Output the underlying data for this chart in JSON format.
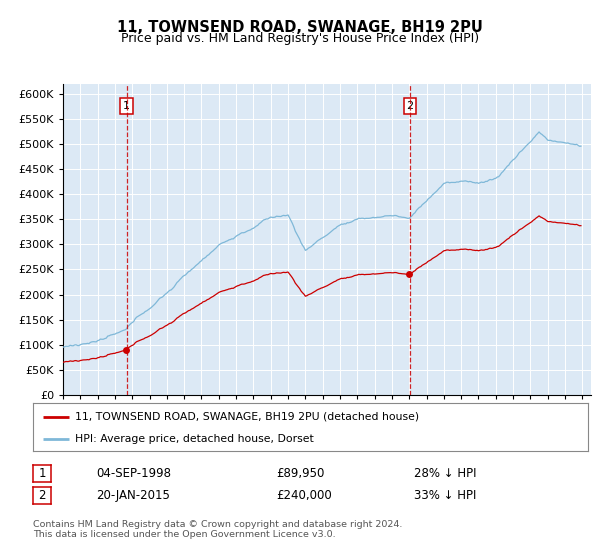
{
  "title": "11, TOWNSEND ROAD, SWANAGE, BH19 2PU",
  "subtitle": "Price paid vs. HM Land Registry's House Price Index (HPI)",
  "plot_bg_color": "#dce9f5",
  "grid_color": "#ffffff",
  "sale1_date_label": "04-SEP-1998",
  "sale1_price": 89950,
  "sale1_hpi_diff": "28% ↓ HPI",
  "sale2_date_label": "20-JAN-2015",
  "sale2_price": 240000,
  "sale2_hpi_diff": "33% ↓ HPI",
  "legend_line1": "11, TOWNSEND ROAD, SWANAGE, BH19 2PU (detached house)",
  "legend_line2": "HPI: Average price, detached house, Dorset",
  "footer": "Contains HM Land Registry data © Crown copyright and database right 2024.\nThis data is licensed under the Open Government Licence v3.0.",
  "red_line_color": "#cc0000",
  "blue_line_color": "#7fb8d8",
  "ylim": [
    0,
    620000
  ],
  "yticks": [
    0,
    50000,
    100000,
    150000,
    200000,
    250000,
    300000,
    350000,
    400000,
    450000,
    500000,
    550000,
    600000
  ],
  "sale1_year": 1998.67,
  "sale2_year": 2015.04
}
